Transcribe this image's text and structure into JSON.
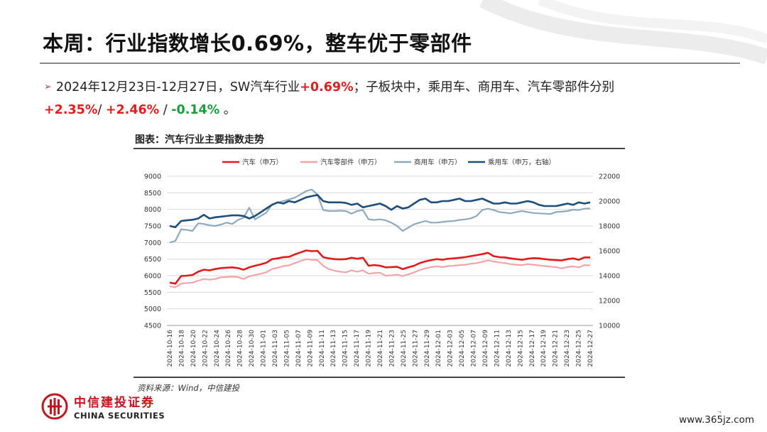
{
  "header": {
    "title": "本周：行业指数增长0.69%，整车优于零部件"
  },
  "bullet": {
    "part1": "2024年12月23日-12月27日，SW汽车行业",
    "industry_change": "+0.69%",
    "part2": "；子板块中，乘用车、商用车、汽车零部件分别",
    "passenger_change": "+2.35%",
    "sep1": "/ ",
    "commercial_change": "+2.46%",
    "sep2": " / ",
    "parts_change": "-0.14%",
    "end": " 。"
  },
  "figure": {
    "title": "图表：汽车行业主要指数走势",
    "source": "资料来源：Wind，中信建投"
  },
  "brand": {
    "name_cn": "中信建投证券",
    "name_en": "CHINA SECURITIES"
  },
  "page_number": "7",
  "watermark": "www.365jz.com",
  "colors": {
    "auto": "#e31a1c",
    "parts": "#f4a4a8",
    "commercial": "#8fa9bd",
    "passenger": "#1f4e79",
    "brand_red": "#c0161d"
  },
  "chart_data": {
    "type": "line",
    "title": "",
    "x_labels": [
      "2024-10-16",
      "2024-10-18",
      "2024-10-20",
      "2024-10-22",
      "2024-10-24",
      "2024-10-26",
      "2024-10-28",
      "2024-10-30",
      "2024-11-01",
      "2024-11-03",
      "2024-11-05",
      "2024-11-07",
      "2024-11-09",
      "2024-11-11",
      "2024-11-13",
      "2024-11-15",
      "2024-11-17",
      "2024-11-19",
      "2024-11-21",
      "2024-11-23",
      "2024-11-25",
      "2024-11-27",
      "2024-11-29",
      "2024-12-01",
      "2024-12-03",
      "2024-12-05",
      "2024-12-07",
      "2024-12-09",
      "2024-12-11",
      "2024-12-13",
      "2024-12-15",
      "2024-12-17",
      "2024-12-19",
      "2024-12-21",
      "2024-12-23",
      "2024-12-25",
      "2024-12-27"
    ],
    "y_left": {
      "min": 4500,
      "max": 9000,
      "ticks": [
        4500,
        5000,
        5500,
        6000,
        6500,
        7000,
        7500,
        8000,
        8500,
        9000
      ]
    },
    "y_right": {
      "min": 10000,
      "max": 22000,
      "ticks": [
        10000,
        12000,
        14000,
        16000,
        18000,
        20000,
        22000
      ]
    },
    "grid": true,
    "legend_position": "top",
    "series": [
      {
        "name": "汽车（申万）",
        "axis": "left",
        "color": "#e31a1c",
        "values": [
          5790,
          5760,
          5990,
          6000,
          6020,
          6120,
          6180,
          6160,
          6200,
          6230,
          6240,
          6250,
          6230,
          6180,
          6250,
          6300,
          6340,
          6390,
          6500,
          6520,
          6560,
          6570,
          6640,
          6700,
          6760,
          6740,
          6750,
          6560,
          6520,
          6500,
          6490,
          6500,
          6540,
          6510,
          6540,
          6300,
          6320,
          6300,
          6250,
          6260,
          6270,
          6200,
          6250,
          6300,
          6380,
          6430,
          6470,
          6500,
          6480,
          6510,
          6520,
          6540,
          6560,
          6590,
          6620,
          6650,
          6690,
          6590,
          6560,
          6550,
          6520,
          6500,
          6480,
          6510,
          6530,
          6520,
          6500,
          6480,
          6470,
          6460,
          6500,
          6520,
          6480,
          6550,
          6550
        ]
      },
      {
        "name": "汽车零部件（申万）",
        "axis": "left",
        "color": "#f4a4a8",
        "values": [
          5680,
          5650,
          5760,
          5780,
          5790,
          5850,
          5900,
          5880,
          5900,
          5950,
          5960,
          5970,
          5960,
          5900,
          5980,
          6020,
          6060,
          6100,
          6200,
          6240,
          6290,
          6310,
          6380,
          6440,
          6500,
          6480,
          6470,
          6300,
          6200,
          6150,
          6120,
          6100,
          6160,
          6120,
          6160,
          6060,
          6080,
          6090,
          6000,
          6010,
          6030,
          5990,
          6040,
          6100,
          6170,
          6220,
          6260,
          6280,
          6260,
          6290,
          6300,
          6320,
          6330,
          6360,
          6380,
          6420,
          6460,
          6430,
          6400,
          6380,
          6350,
          6330,
          6320,
          6350,
          6330,
          6310,
          6290,
          6270,
          6260,
          6220,
          6260,
          6280,
          6250,
          6320,
          6310
        ]
      },
      {
        "name": "商用车（申万）",
        "axis": "left",
        "color": "#8fa9bd",
        "values": [
          7000,
          7050,
          7400,
          7380,
          7350,
          7580,
          7560,
          7520,
          7500,
          7540,
          7600,
          7560,
          7680,
          7750,
          8050,
          7700,
          7800,
          7900,
          8150,
          8200,
          8250,
          8300,
          8350,
          8450,
          8550,
          8600,
          8450,
          7980,
          7950,
          7950,
          7960,
          7950,
          7870,
          7950,
          7980,
          7700,
          7680,
          7700,
          7670,
          7600,
          7500,
          7350,
          7450,
          7550,
          7600,
          7650,
          7600,
          7600,
          7620,
          7640,
          7650,
          7680,
          7700,
          7730,
          7800,
          7980,
          8020,
          7980,
          7920,
          7900,
          7880,
          7920,
          7950,
          7920,
          7890,
          7880,
          7870,
          7860,
          7920,
          7930,
          7950,
          7990,
          7980,
          8020,
          8030
        ]
      },
      {
        "name": "乘用车（申万，右轴）",
        "axis": "right",
        "color": "#1f4e79",
        "values": [
          18000,
          17900,
          18400,
          18450,
          18500,
          18600,
          18900,
          18600,
          18700,
          18750,
          18800,
          18850,
          18850,
          18800,
          18600,
          18800,
          19100,
          19400,
          19700,
          19900,
          19800,
          20000,
          19900,
          20100,
          20300,
          20400,
          20500,
          20000,
          19900,
          19900,
          19900,
          19850,
          19700,
          19800,
          19500,
          19600,
          19700,
          19800,
          19600,
          19300,
          19600,
          19400,
          19500,
          19800,
          20100,
          20200,
          19900,
          19900,
          20000,
          20000,
          20100,
          20200,
          20000,
          20000,
          20100,
          20200,
          20000,
          19800,
          19800,
          19900,
          19800,
          19800,
          19900,
          20000,
          19900,
          19700,
          19600,
          19600,
          19600,
          19700,
          19800,
          19700,
          19900,
          19800,
          19900
        ]
      }
    ]
  }
}
